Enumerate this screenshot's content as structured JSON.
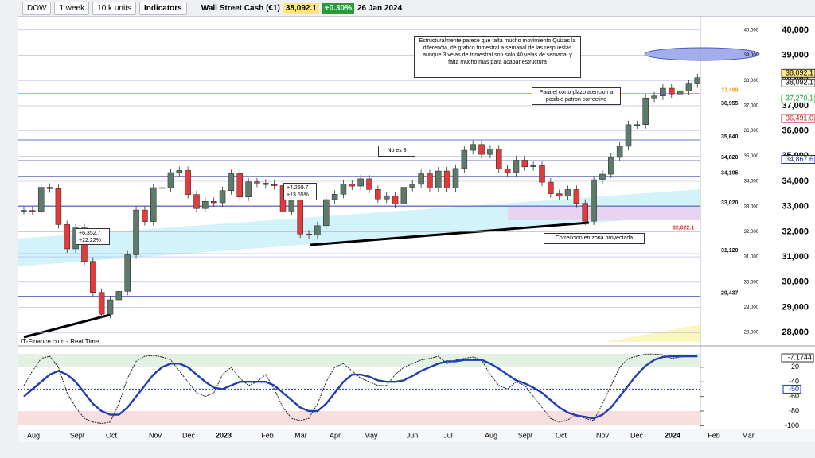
{
  "toolbar": {
    "symbol": "DOW",
    "timeframe": "1 week",
    "units": "10 k units",
    "indicators": "Indicators",
    "instrument": "Wall Street Cash (€1)",
    "last": {
      "value": 38092.1,
      "label": "38,092.1"
    },
    "change": "+0.30%",
    "date": "26 Jan 2024"
  },
  "chart_data": [
    {
      "type": "candlestick",
      "up_color": "#5e7a68",
      "down_color": "#e23b3b",
      "values": [
        32845,
        32803,
        33761,
        33706,
        32283,
        31318,
        32151,
        30822,
        29590,
        28725,
        29297,
        29634,
        31082,
        32861,
        32403,
        33747,
        33746,
        34347,
        34429,
        33476,
        32920,
        33203,
        33147,
        33630,
        34302,
        33375,
        33978,
        33926,
        33869,
        33826,
        32817,
        33391,
        31910,
        31862,
        32238,
        33274,
        33485,
        33886,
        33809,
        34098,
        33674,
        33300,
        33427,
        33093,
        33762,
        33877,
        34299,
        33727,
        34408,
        33734,
        34509,
        35228,
        35459,
        35066,
        35281,
        34500,
        34346,
        34838,
        34577,
        34618,
        33964,
        33508,
        33407,
        33670,
        33127,
        32418,
        34061,
        34283,
        34947,
        35390,
        36245,
        36248,
        37306,
        37385,
        37690,
        37466,
        37593,
        37863,
        38109
      ],
      "ylim": [
        27500,
        40500
      ],
      "yticks": [
        {
          "value": 28000,
          "label": "28,000"
        },
        {
          "value": 29000,
          "label": "29,000"
        },
        {
          "value": 30000,
          "label": "30,000"
        },
        {
          "value": 31000,
          "label": "31,000"
        },
        {
          "value": 32000,
          "label": "32,000"
        },
        {
          "value": 33000,
          "label": "33,000"
        },
        {
          "value": 34000,
          "label": "34,000"
        },
        {
          "value": 35000,
          "label": "35,000"
        },
        {
          "value": 36000,
          "label": "36,000"
        },
        {
          "value": 37000,
          "label": "37,000"
        },
        {
          "value": 38000,
          "label": "38,000"
        },
        {
          "value": 39000,
          "label": "39,000"
        },
        {
          "value": 40000,
          "label": "40,000"
        }
      ],
      "xlabels": [
        "Aug",
        "Sept",
        "Oct",
        "Nov",
        "Dec",
        "2023",
        "Feb",
        "Mar",
        "Apr",
        "May",
        "Jun",
        "Jul",
        "Aug",
        "Sept",
        "Oct",
        "Nov",
        "Dec",
        "2024",
        "Feb",
        "Mar"
      ],
      "levels": [
        {
          "value": 37489,
          "label": "37,489",
          "color": "#f0a020"
        },
        {
          "value": 36955,
          "label": "36,955",
          "color": "#3a4ab0"
        },
        {
          "value": 35640,
          "label": "35,640",
          "color": "#3a4ab0"
        },
        {
          "value": 34820,
          "label": "34,820",
          "color": "#3a4ab0"
        },
        {
          "value": 34195,
          "label": "34,195",
          "color": "#3a4ab0"
        },
        {
          "value": 33020,
          "label": "33,020",
          "color": "#3a4ab0"
        },
        {
          "value": 32022.1,
          "label": "32,022.1",
          "color": "#e03030"
        },
        {
          "value": 31120,
          "label": "31,120",
          "color": "#3a4ab0"
        },
        {
          "value": 29437,
          "label": "29,437",
          "color": "#3a4ab0"
        }
      ],
      "indicator_values": [
        {
          "value": 37270.1,
          "label": "37,270.1",
          "color": "#22a03a"
        },
        {
          "value": 36491.0,
          "label": "36,491.0",
          "color": "#c02020"
        },
        {
          "value": 34867.6,
          "label": "34,867.6",
          "color": "#2030a0"
        }
      ],
      "annotations": [
        "Estructuralmente parece que falta mucho movimiento Quizas la diferencia, de grafico trimestral a semanal de las respuestas aunque 3 velas de trimestral son solo 40 velas de semanal y falta mucho mas para acabar estructura",
        "Para el corto plazo atencion a posible patron correctivo",
        "No es 3",
        "Correccion en zona proyectada"
      ],
      "measures": [
        {
          "value": 6352.7,
          "label": "+6,352.7",
          "percent": "+22.22%"
        },
        {
          "value": 4259.7,
          "label": "+4,259.7",
          "percent": "+13.55%"
        }
      ],
      "source": "IT-Finance.com - Real Time"
    },
    {
      "type": "line",
      "ylim": [
        -105,
        7
      ],
      "yticks": [
        -20,
        -40,
        -60,
        -80,
        -100
      ],
      "reference": -50,
      "current": -7.1744,
      "series": [
        {
          "name": "fast",
          "color": "#222222",
          "values": [
            -45,
            -25,
            -8,
            -5,
            -20,
            -55,
            -75,
            -90,
            -95,
            -97,
            -95,
            -70,
            -35,
            -12,
            -5,
            -4,
            -6,
            -10,
            -25,
            -40,
            -55,
            -60,
            -55,
            -30,
            -20,
            -35,
            -45,
            -40,
            -30,
            -50,
            -75,
            -90,
            -93,
            -90,
            -70,
            -40,
            -20,
            -15,
            -25,
            -35,
            -40,
            -45,
            -45,
            -30,
            -20,
            -15,
            -10,
            -8,
            -5,
            -15,
            -10,
            -8,
            -6,
            -10,
            -30,
            -45,
            -50,
            -40,
            -45,
            -60,
            -75,
            -90,
            -95,
            -92,
            -85,
            -90,
            -93,
            -70,
            -45,
            -20,
            -8,
            -5,
            -2,
            -2,
            -3,
            -8,
            -6,
            -5,
            -4
          ]
        },
        {
          "name": "slow",
          "color": "#1f3fb0",
          "values": [
            -60,
            -50,
            -40,
            -30,
            -25,
            -30,
            -40,
            -55,
            -70,
            -80,
            -85,
            -85,
            -75,
            -60,
            -45,
            -30,
            -20,
            -15,
            -15,
            -20,
            -30,
            -40,
            -48,
            -50,
            -45,
            -40,
            -40,
            -40,
            -40,
            -45,
            -55,
            -65,
            -75,
            -80,
            -80,
            -70,
            -55,
            -40,
            -30,
            -30,
            -33,
            -38,
            -40,
            -40,
            -38,
            -32,
            -25,
            -20,
            -15,
            -12,
            -12,
            -10,
            -10,
            -10,
            -15,
            -22,
            -30,
            -38,
            -42,
            -48,
            -55,
            -65,
            -75,
            -82,
            -86,
            -88,
            -90,
            -85,
            -75,
            -60,
            -45,
            -30,
            -18,
            -10,
            -6,
            -5,
            -5,
            -5,
            -5
          ]
        }
      ]
    }
  ]
}
